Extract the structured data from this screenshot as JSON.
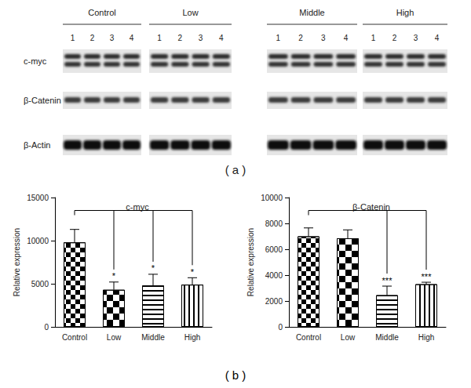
{
  "panel_labels": [
    "( a )",
    "( b )"
  ],
  "blot": {
    "groups": [
      "Control",
      "Low",
      "Middle",
      "High"
    ],
    "lanes": [
      1,
      2,
      3,
      4
    ],
    "rows": [
      "c-myc",
      "β-Catenin",
      "β-Actin"
    ]
  },
  "chart_data": [
    {
      "type": "bar",
      "title": "c-myc",
      "ylabel": "Relative expression",
      "categories": [
        "Control",
        "Low",
        "Middle",
        "High"
      ],
      "values": [
        9800,
        4300,
        4800,
        4900
      ],
      "errors": [
        1500,
        900,
        1300,
        800
      ],
      "significance": [
        null,
        "*",
        "*",
        "*"
      ],
      "color": "#000000",
      "ylim": [
        0,
        15000
      ],
      "yticks": [
        0,
        5000,
        10000,
        15000
      ],
      "grid": false
    },
    {
      "type": "bar",
      "title": "β-Catenin",
      "ylabel": "Relative expression",
      "categories": [
        "Control",
        "Low",
        "Middle",
        "High"
      ],
      "values": [
        7000,
        6850,
        2450,
        3300
      ],
      "errors": [
        650,
        650,
        700,
        150
      ],
      "significance": [
        null,
        null,
        "***",
        "***"
      ],
      "color": "#000000",
      "ylim": [
        0,
        10000
      ],
      "yticks": [
        0,
        2000,
        4000,
        6000,
        8000,
        10000
      ],
      "grid": false
    }
  ]
}
